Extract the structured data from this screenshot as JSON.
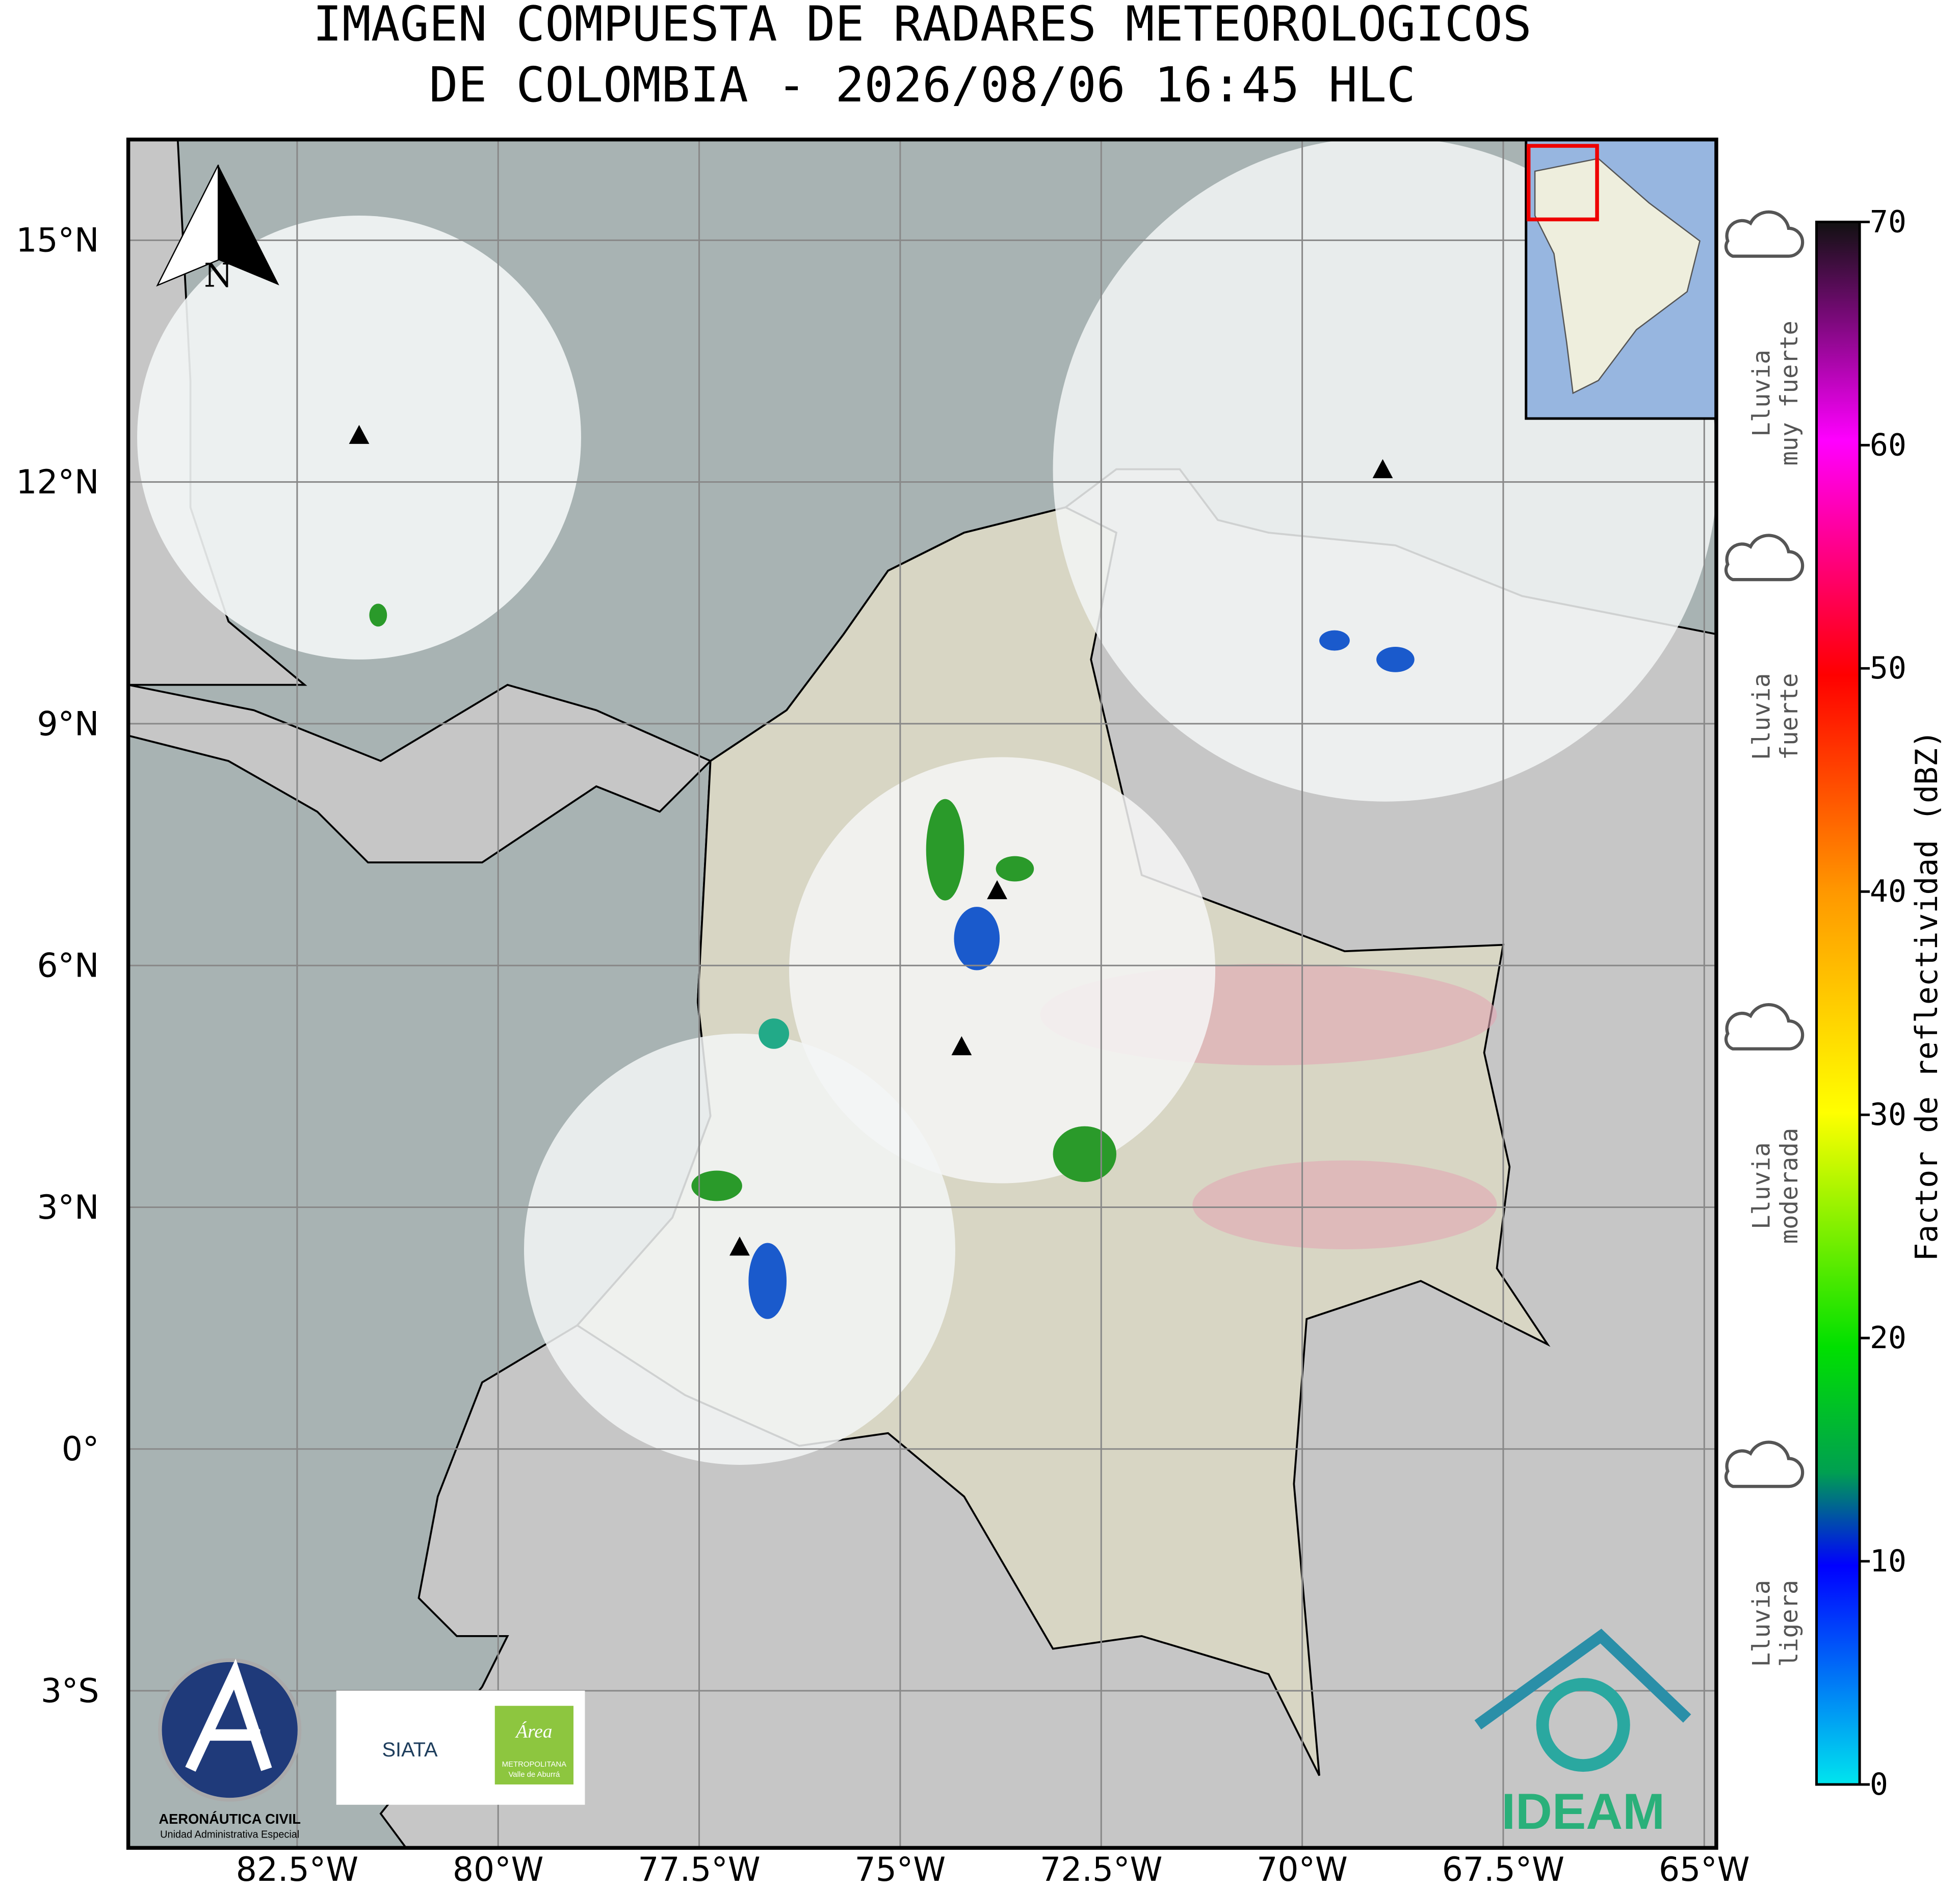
{
  "map": {
    "title": [
      "IMAGEN COMPUESTA DE RADARES METEOROLOGICOS",
      "DE COLOMBIA - 2026/08/06 16:45 HLC"
    ],
    "lonlim": [
      -84.6,
      -64.85
    ],
    "latlim": [
      -4.95,
      16.25
    ],
    "lon_ticks": [
      {
        "value": -82.5,
        "label": "82.5°W"
      },
      {
        "value": -80,
        "label": "80°W"
      },
      {
        "value": -77.5,
        "label": "77.5°W"
      },
      {
        "value": -75,
        "label": "75°W"
      },
      {
        "value": -72.5,
        "label": "72.5°W"
      },
      {
        "value": -70,
        "label": "70°W"
      },
      {
        "value": -67.5,
        "label": "67.5°W"
      },
      {
        "value": -65,
        "label": "65°W"
      }
    ],
    "lat_ticks": [
      {
        "value": 15,
        "label": "15°N"
      },
      {
        "value": 12,
        "label": "12°N"
      },
      {
        "value": 9,
        "label": "9°N"
      },
      {
        "value": 6,
        "label": "6°N"
      },
      {
        "value": 3,
        "label": "3°N"
      },
      {
        "value": 0,
        "label": "0°"
      },
      {
        "value": -3,
        "label": "3°S"
      }
    ],
    "north": "N",
    "colorbar": {
      "label": "Factor de reflectividad (dBZ)",
      "lim": [
        0,
        70
      ],
      "ticks": [
        0,
        10,
        20,
        30,
        40,
        50,
        60,
        70
      ]
    },
    "rain_levels": [
      [
        "Lluvia",
        "ligera"
      ],
      [
        "Lluvia",
        "moderada"
      ],
      [
        "Lluvia",
        "fuerte"
      ],
      [
        "Lluvia",
        "muy fuerte"
      ]
    ],
    "logos": {
      "aero": "AERONÁUTICA CIVIL",
      "aero_sub": "Unidad Administrativa Especial",
      "siata": "SIATA",
      "area": "Área",
      "area_sub": "METROPOLITANA",
      "area_sub2": "Valle de Aburrá",
      "ideam": "IDEAM"
    }
  }
}
